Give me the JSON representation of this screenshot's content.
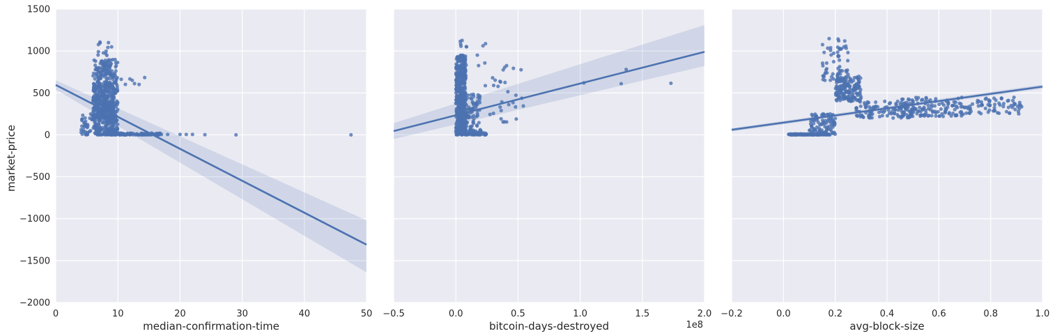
{
  "figure": {
    "ylabel": "market-price",
    "colors": {
      "series": "#4c72b0",
      "panel_background": "#eaeaf2",
      "grid": "#ffffff"
    }
  },
  "chart_data": [
    {
      "type": "scatter",
      "xlabel": "median-confirmation-time",
      "ylabel": "market-price",
      "xlim": [
        0,
        50
      ],
      "ylim": [
        -2000,
        1500
      ],
      "xticks": [
        "0",
        "10",
        "20",
        "30",
        "40",
        "50"
      ],
      "yticks": [
        "1500",
        "1000",
        "500",
        "0",
        "−500",
        "−1000",
        "−1500",
        "−2000"
      ],
      "grid": true,
      "regression": {
        "x": [
          0,
          50
        ],
        "y": [
          595,
          -1310
        ],
        "ci_low": [
          540,
          -1640
        ],
        "ci_high": [
          650,
          -1020
        ]
      },
      "clusters": [
        {
          "x": [
            6,
            10
          ],
          "y": [
            0,
            900
          ],
          "n": 340
        },
        {
          "x": [
            6,
            9.5
          ],
          "y": [
            200,
            650
          ],
          "n": 260
        },
        {
          "x": [
            4,
            10
          ],
          "y": [
            0,
            250
          ],
          "n": 120
        },
        {
          "x": [
            6,
            9
          ],
          "y": [
            700,
            1150
          ],
          "n": 30
        },
        {
          "x": [
            8,
            17
          ],
          "y": [
            0,
            20
          ],
          "n": 120
        },
        {
          "x": [
            9,
            15
          ],
          "y": [
            600,
            700
          ],
          "n": 8
        }
      ],
      "points": [
        [
          17,
          5
        ],
        [
          18,
          5
        ],
        [
          20,
          5
        ],
        [
          21,
          5
        ],
        [
          22,
          5
        ],
        [
          24,
          2
        ],
        [
          29,
          0
        ],
        [
          47.5,
          0
        ]
      ]
    },
    {
      "type": "scatter",
      "xlabel": "bitcoin-days-destroyed",
      "offset_text": "1e8",
      "xlim": [
        -0.5,
        2.0
      ],
      "ylim": [
        -2000,
        1500
      ],
      "xticks": [
        "−0.5",
        "0.0",
        "0.5",
        "1.0",
        "1.5",
        "2.0"
      ],
      "grid": true,
      "regression": {
        "x": [
          -0.5,
          2.0
        ],
        "y": [
          45,
          990
        ],
        "ci_low": [
          -50,
          820
        ],
        "ci_high": [
          140,
          1310
        ]
      },
      "clusters": [
        {
          "x": [
            0.0,
            0.08
          ],
          "y": [
            0,
            950
          ],
          "n": 420
        },
        {
          "x": [
            0.02,
            0.2
          ],
          "y": [
            0,
            500
          ],
          "n": 120
        },
        {
          "x": [
            0.0,
            0.25
          ],
          "y": [
            0,
            30
          ],
          "n": 60
        },
        {
          "x": [
            0.2,
            0.55
          ],
          "y": [
            150,
            850
          ],
          "n": 30
        },
        {
          "x": [
            0.03,
            0.25
          ],
          "y": [
            800,
            1150
          ],
          "n": 12
        }
      ],
      "points": [
        [
          1.03,
          620
        ],
        [
          1.33,
          610
        ],
        [
          1.37,
          780
        ],
        [
          1.73,
          615
        ]
      ]
    },
    {
      "type": "scatter",
      "xlabel": "avg-block-size",
      "xlim": [
        -0.2,
        1.0
      ],
      "ylim": [
        -2000,
        1500
      ],
      "xticks": [
        "−0.2",
        "0.0",
        "0.2",
        "0.4",
        "0.6",
        "0.8",
        "1.0"
      ],
      "grid": true,
      "regression": {
        "x": [
          -0.2,
          1.0
        ],
        "y": [
          60,
          575
        ],
        "ci_low": [
          40,
          550
        ],
        "ci_high": [
          80,
          600
        ]
      },
      "clusters": [
        {
          "x": [
            0.02,
            0.18
          ],
          "y": [
            0,
            10
          ],
          "n": 150
        },
        {
          "x": [
            0.1,
            0.2
          ],
          "y": [
            0,
            250
          ],
          "n": 100
        },
        {
          "x": [
            0.2,
            0.3
          ],
          "y": [
            400,
            700
          ],
          "n": 160
        },
        {
          "x": [
            0.15,
            0.25
          ],
          "y": [
            650,
            1150
          ],
          "n": 60
        },
        {
          "x": [
            0.28,
            0.5
          ],
          "y": [
            200,
            400
          ],
          "n": 110
        },
        {
          "x": [
            0.45,
            0.7
          ],
          "y": [
            220,
            450
          ],
          "n": 130
        },
        {
          "x": [
            0.7,
            0.92
          ],
          "y": [
            250,
            450
          ],
          "n": 70
        }
      ],
      "points": []
    }
  ]
}
